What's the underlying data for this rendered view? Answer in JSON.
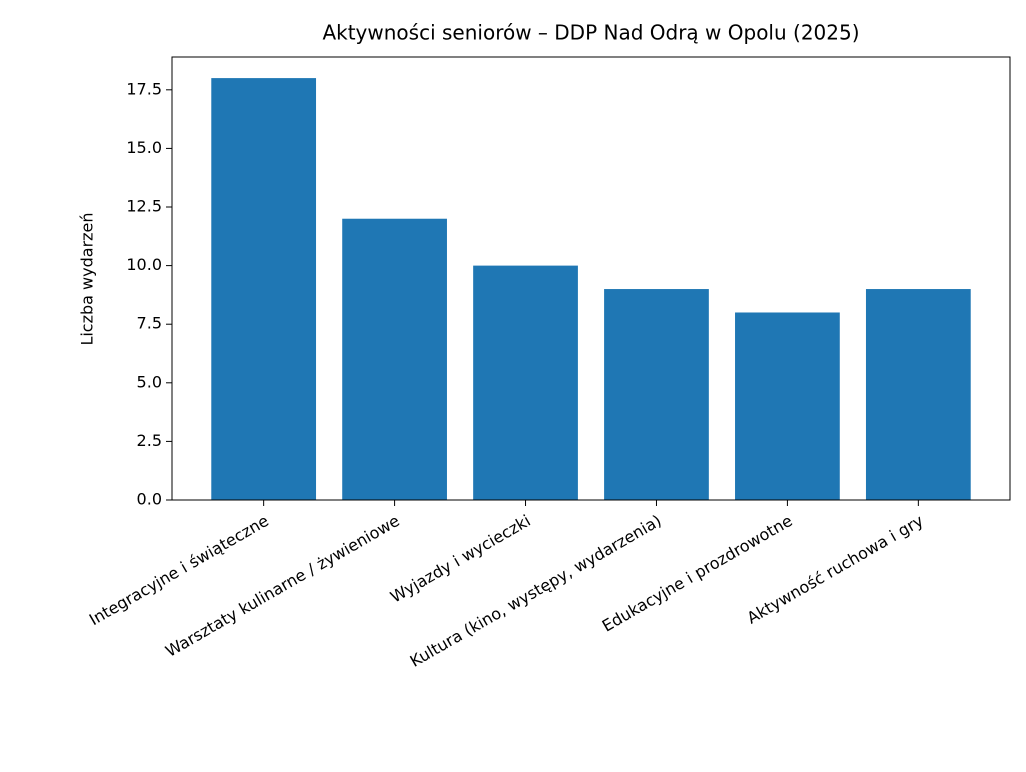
{
  "chart_data": {
    "type": "bar",
    "title": "Aktywności seniorów – DDP Nad Odrą w Opolu (2025)",
    "y_label": "Liczba wydarzeń",
    "categories": [
      "Integracyjne i świąteczne",
      "Warsztaty kulinarne / żywieniowe",
      "Wyjazdy i wycieczki",
      "Kultura (kino, występy, wydarzenia)",
      "Edukacyjne i prozdrowotne",
      "Aktywność ruchowa i gry"
    ],
    "values": [
      18,
      12,
      10,
      9,
      8,
      9
    ],
    "color": "#1f77b4",
    "ylim": [
      0,
      18.9
    ],
    "yticks": [
      {
        "value": 0,
        "label": "0.0"
      },
      2.5,
      {
        "value": 5,
        "label": "5.0"
      },
      7.5,
      {
        "value": 10,
        "label": "10.0"
      },
      12.5,
      {
        "value": 15,
        "label": "15.0"
      },
      17.5
    ],
    "grid": false
  }
}
